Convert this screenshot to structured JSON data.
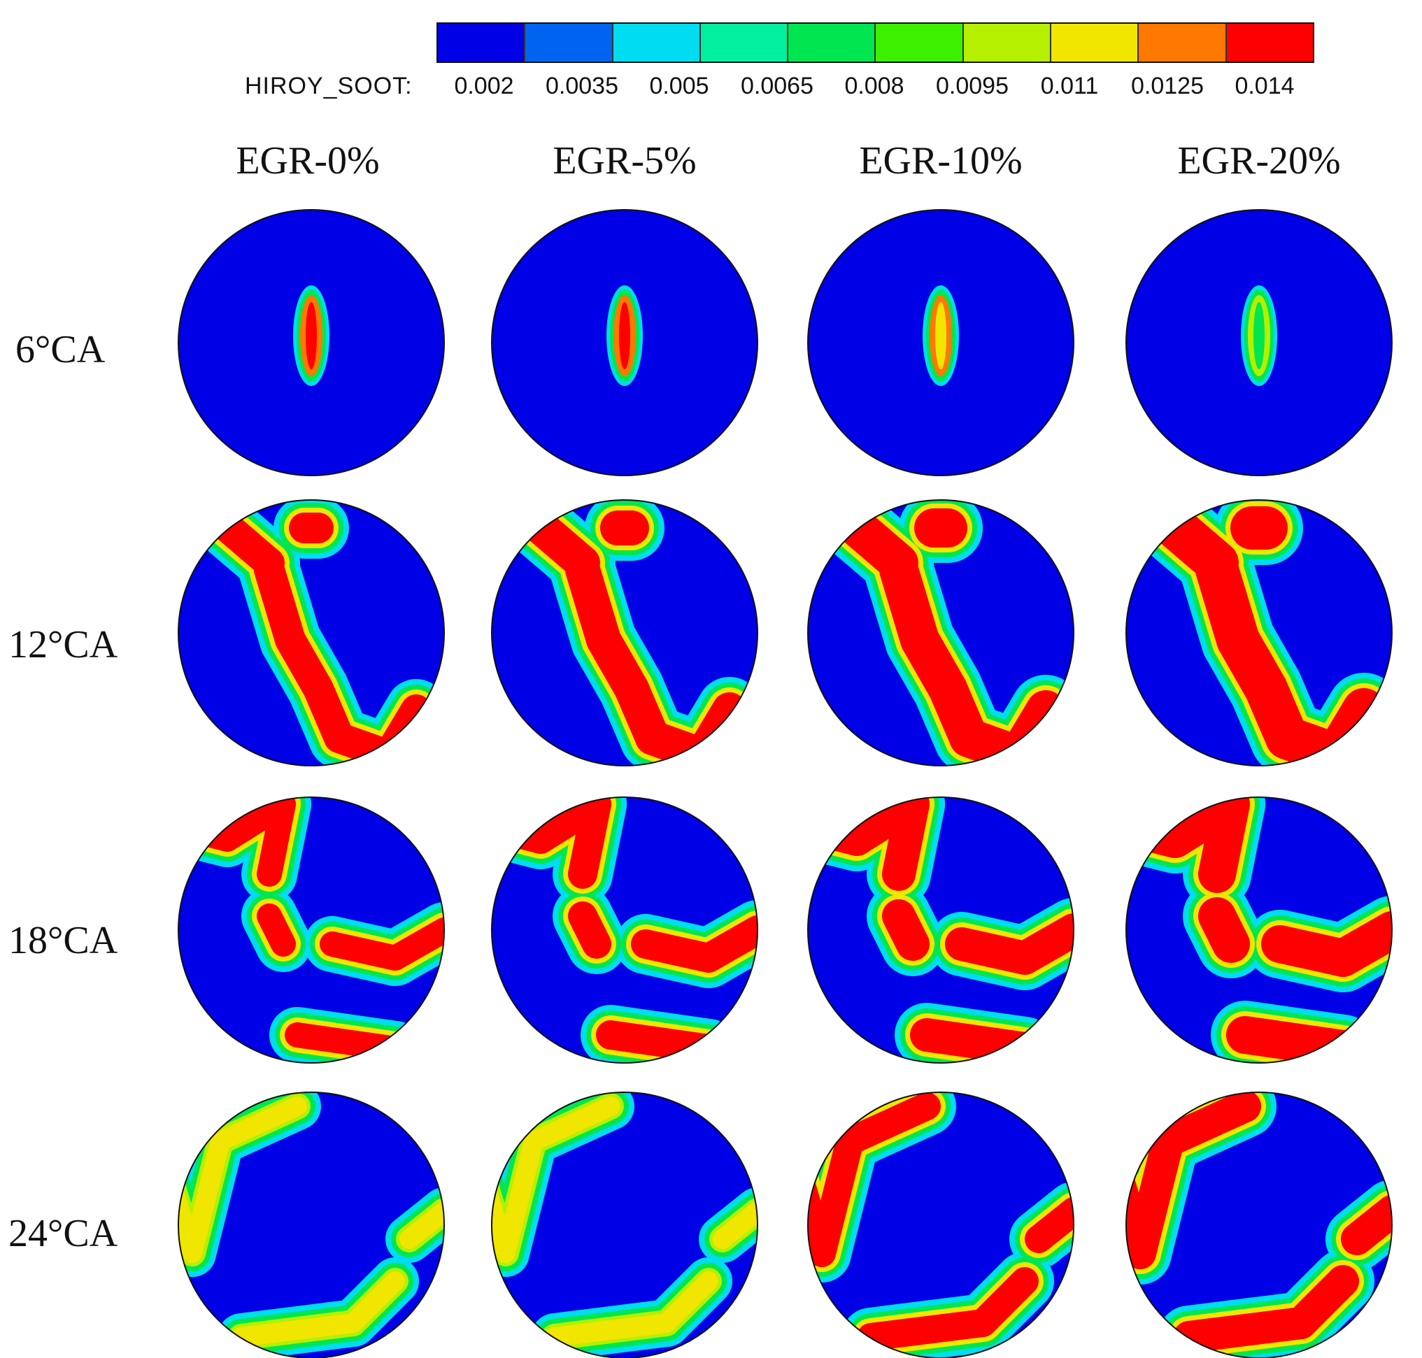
{
  "colorbar": {
    "variable": "HIROY_SOOT:",
    "tick_labels": [
      "0.002",
      "0.0035",
      "0.005",
      "0.0065",
      "0.008",
      "0.0095",
      "0.011",
      "0.0125",
      "0.014"
    ],
    "colors": [
      "#0000e6",
      "#0064f0",
      "#00dcf0",
      "#00f0a0",
      "#00e650",
      "#3cf000",
      "#b4f000",
      "#f0e600",
      "#ff7800",
      "#ff0000"
    ]
  },
  "columns": [
    "EGR-0%",
    "EGR-5%",
    "EGR-10%",
    "EGR-20%"
  ],
  "rows": [
    "6°CA",
    "12°CA",
    "18°CA",
    "24°CA"
  ]
}
